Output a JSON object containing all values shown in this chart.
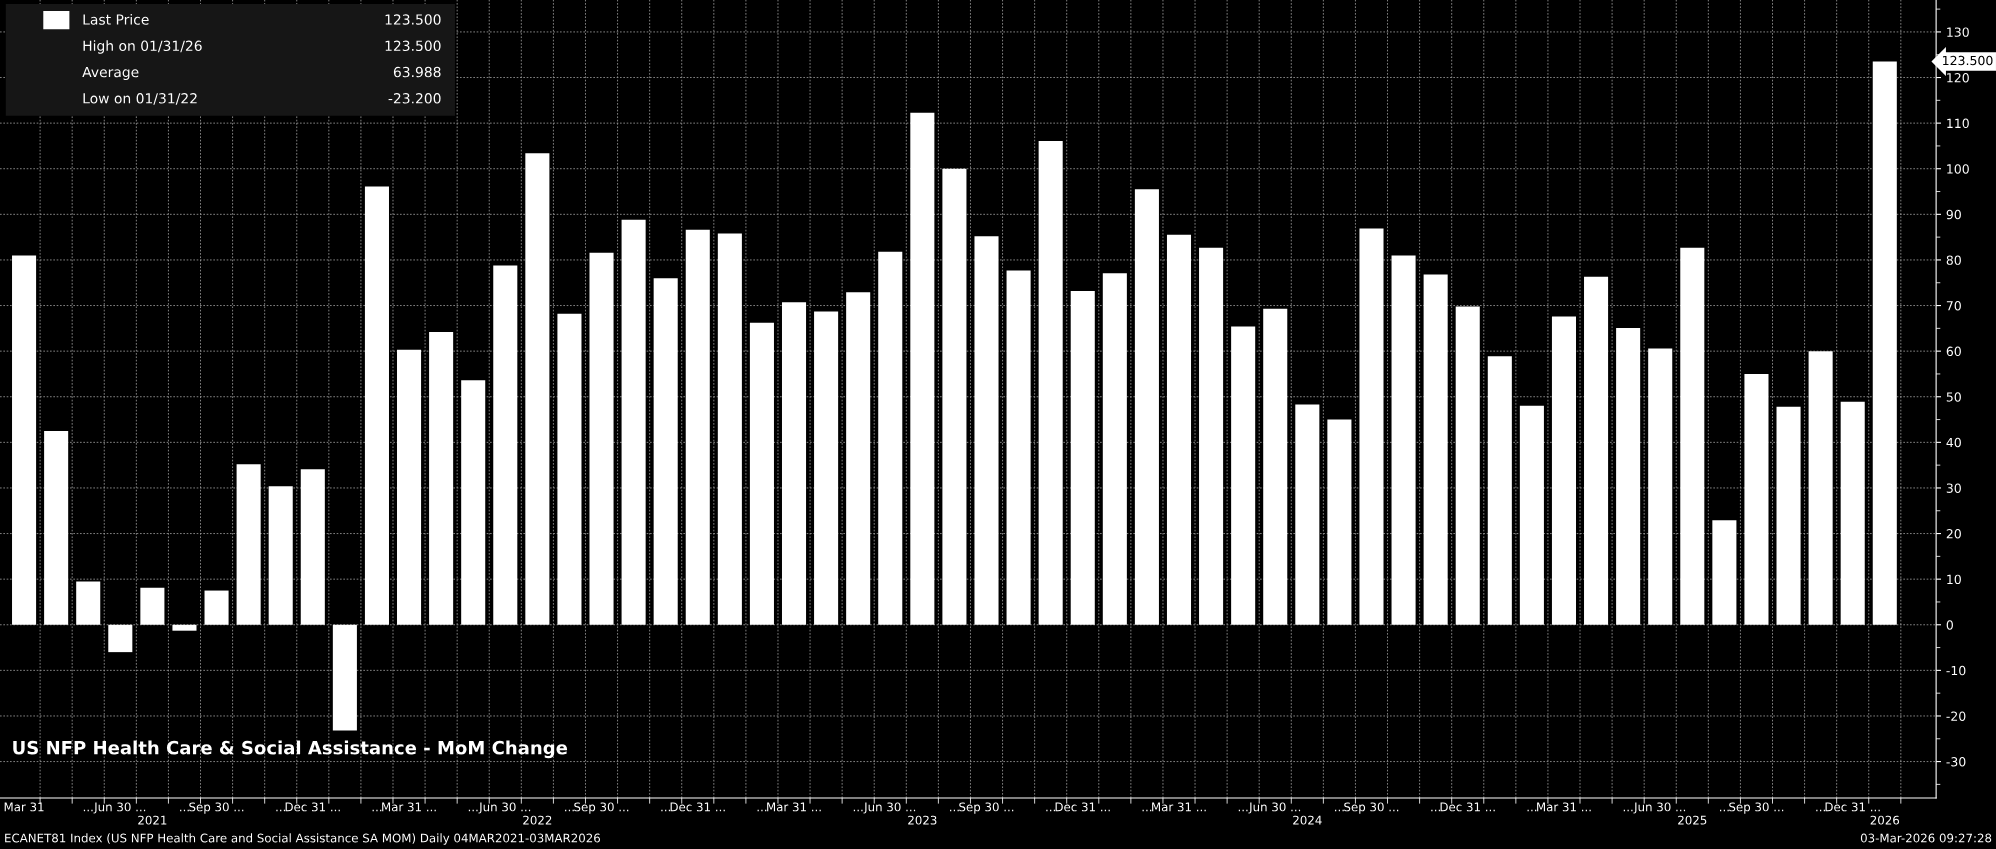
{
  "chart_data": {
    "type": "bar",
    "title": "US NFP Health Care & Social Assistance - MoM Change",
    "categories": [
      "Mar 31",
      null,
      "...",
      "Jun 30 ...",
      "\n2021",
      "...",
      "Sep 30 ...",
      null,
      "...",
      "Dec 31 ...",
      null,
      "...",
      "Mar 31 ...",
      null,
      "...",
      "Jun 30 ...",
      "\n2022",
      "...",
      "Sep 30 ...",
      null,
      "...",
      "Dec 31 ...",
      null,
      "...",
      "Mar 31 ...",
      null,
      "...",
      "Jun 30 ...",
      "\n2023",
      "...",
      "Sep 30 ...",
      null,
      "...",
      "Dec 31 ...",
      null,
      "...",
      "Mar 31 ...",
      null,
      "...",
      "Jun 30 ...",
      "\n2024",
      "...",
      "Sep 30 ...",
      null,
      "...",
      "Dec 31 ...",
      null,
      "...",
      "Mar 31 ...",
      null,
      "...",
      "Jun 30 ...",
      "\n2025",
      "...",
      "Sep 30 ...",
      null,
      "...",
      "Dec 31 ...",
      "\n2026"
    ],
    "series": [
      {
        "name": "Last Price",
        "color": "#ffffff",
        "values": [
          81,
          42.5,
          9.5,
          -6,
          8.1,
          -1.3,
          7.5,
          35.2,
          30.4,
          34.1,
          -23.2,
          96.1,
          60.3,
          64.2,
          53.6,
          78.8,
          103.4,
          68.2,
          81.6,
          88.8,
          76,
          86.6,
          85.8,
          66.2,
          70.7,
          68.7,
          72.9,
          81.8,
          112.3,
          100,
          85.2,
          77.7,
          106.1,
          73.2,
          77.1,
          95.5,
          85.5,
          82.7,
          65.4,
          69.3,
          48.3,
          45,
          86.9,
          81,
          76.8,
          69.8,
          58.9,
          48,
          67.6,
          76.3,
          65.1,
          60.6,
          82.7,
          22.9,
          55,
          47.8,
          60,
          48.9,
          123.5
        ]
      }
    ],
    "ylim": [
      -38,
      137
    ],
    "yticks": [
      -30,
      -20,
      -10,
      0,
      10,
      20,
      30,
      40,
      50,
      60,
      70,
      80,
      90,
      100,
      110,
      120,
      130
    ],
    "grid": true,
    "legend": "top left",
    "annotations": [
      "123.500",
      "High on 01/31/26",
      "123.500",
      "Average",
      "63.988",
      "Low on 01/31/22",
      "-23.200",
      "ECANET81 Index (US NFP Health Care and Social Assistance SA MOM) Daily 04MAR2021-03MAR2026",
      "03-Mar-2026 09:27:28",
      "123.500"
    ]
  }
}
